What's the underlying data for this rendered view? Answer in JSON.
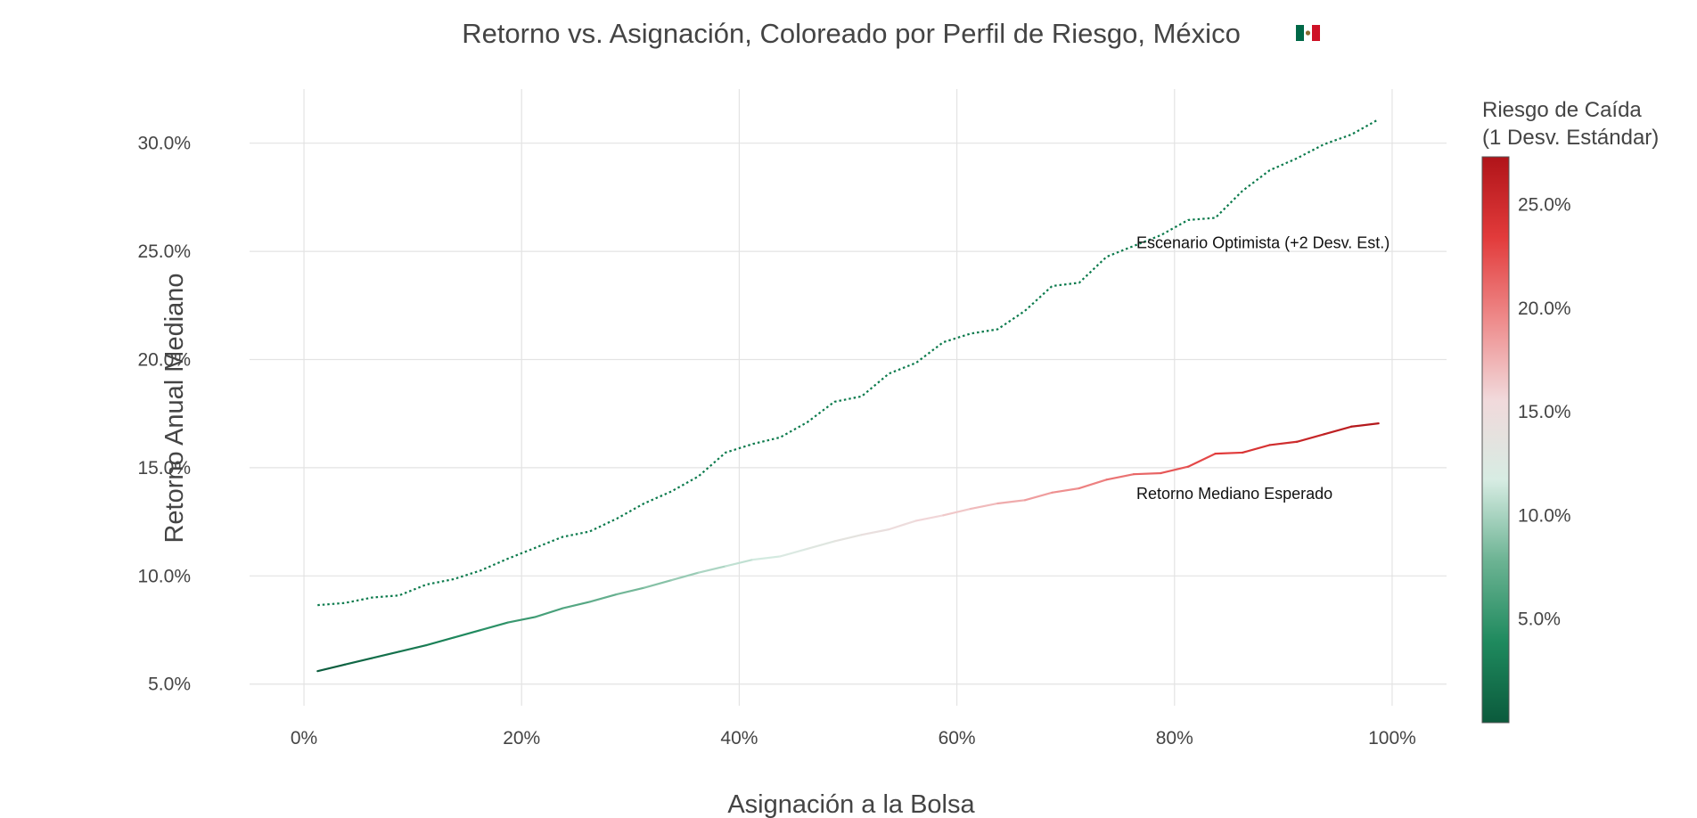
{
  "chart_data": {
    "type": "line",
    "title": "Retorno vs. Asignación, Coloreado por Perfil de Riesgo, México",
    "title_flag_icon": "mexico-flag-icon",
    "xlabel": "Asignación a la Bolsa",
    "ylabel": "Retorno Anual Mediano",
    "xlim": [
      -0.05,
      1.05
    ],
    "ylim": [
      0.04,
      0.325
    ],
    "xticks": [
      0,
      0.2,
      0.4,
      0.6,
      0.8,
      1.0
    ],
    "xtick_labels": [
      "0%",
      "20%",
      "40%",
      "60%",
      "80%",
      "100%"
    ],
    "yticks": [
      0.05,
      0.1,
      0.15,
      0.2,
      0.25,
      0.3
    ],
    "ytick_labels": [
      "5.0%",
      "10.0%",
      "15.0%",
      "20.0%",
      "25.0%",
      "30.0%"
    ],
    "grid": true,
    "x": [
      0.0125,
      0.0375,
      0.0625,
      0.0875,
      0.1125,
      0.1375,
      0.1625,
      0.1875,
      0.2125,
      0.2375,
      0.2625,
      0.2875,
      0.3125,
      0.3375,
      0.3625,
      0.3875,
      0.4125,
      0.4375,
      0.4625,
      0.4875,
      0.5125,
      0.5375,
      0.5625,
      0.5875,
      0.6125,
      0.6375,
      0.6625,
      0.6875,
      0.7125,
      0.7375,
      0.7625,
      0.7875,
      0.8125,
      0.8375,
      0.8625,
      0.8875,
      0.9125,
      0.9375,
      0.9625,
      0.9875
    ],
    "series": [
      {
        "key": "median",
        "style": "solid",
        "values": [
          0.056,
          0.059,
          0.062,
          0.065,
          0.068,
          0.0715,
          0.075,
          0.0785,
          0.081,
          0.085,
          0.088,
          0.0915,
          0.0945,
          0.098,
          0.1015,
          0.1045,
          0.1075,
          0.109,
          0.1125,
          0.116,
          0.119,
          0.1215,
          0.1255,
          0.128,
          0.131,
          0.1335,
          0.135,
          0.1385,
          0.1405,
          0.1445,
          0.147,
          0.1475,
          0.1505,
          0.1565,
          0.157,
          0.1605,
          0.162,
          0.1655,
          0.169,
          0.1705
        ],
        "risk": [
          0.0,
          0.007,
          0.014,
          0.021,
          0.028,
          0.035,
          0.042,
          0.049,
          0.056,
          0.063,
          0.07,
          0.077,
          0.084,
          0.091,
          0.098,
          0.105,
          0.112,
          0.119,
          0.126,
          0.133,
          0.14,
          0.147,
          0.154,
          0.161,
          0.168,
          0.175,
          0.182,
          0.189,
          0.196,
          0.203,
          0.21,
          0.217,
          0.224,
          0.231,
          0.238,
          0.245,
          0.252,
          0.259,
          0.266,
          0.273
        ]
      },
      {
        "key": "optimistic",
        "style": "dotted",
        "color": "#0b7a4c",
        "values": [
          0.0865,
          0.0875,
          0.09,
          0.091,
          0.096,
          0.0985,
          0.1025,
          0.108,
          0.113,
          0.118,
          0.1205,
          0.1265,
          0.1335,
          0.139,
          0.146,
          0.157,
          0.161,
          0.164,
          0.171,
          0.1805,
          0.183,
          0.1935,
          0.1985,
          0.208,
          0.212,
          0.214,
          0.2225,
          0.234,
          0.2355,
          0.2475,
          0.2525,
          0.2575,
          0.2645,
          0.2655,
          0.278,
          0.2875,
          0.293,
          0.2995,
          0.304,
          0.311
        ]
      }
    ],
    "annotations": [
      {
        "text": "Escenario Optimista (+2 Desv. Est.)",
        "x": 0.765,
        "y": 0.2515
      },
      {
        "text": "Retorno Mediano Esperado",
        "x": 0.765,
        "y": 0.1355
      }
    ],
    "colorbar": {
      "title_line1": "Riesgo de Caída",
      "title_line2": "(1 Desv. Estándar)",
      "range": [
        0.0,
        0.273
      ],
      "ticks": [
        0.05,
        0.1,
        0.15,
        0.2,
        0.25
      ],
      "tick_labels": [
        "5.0%",
        "10.0%",
        "15.0%",
        "20.0%",
        "25.0%"
      ],
      "colorscale": [
        "#0b5a3c",
        "#1f8a5e",
        "#6cb393",
        "#d7ece3",
        "#f1d9db",
        "#ee8a8a",
        "#e23b3b",
        "#b01419"
      ]
    }
  }
}
